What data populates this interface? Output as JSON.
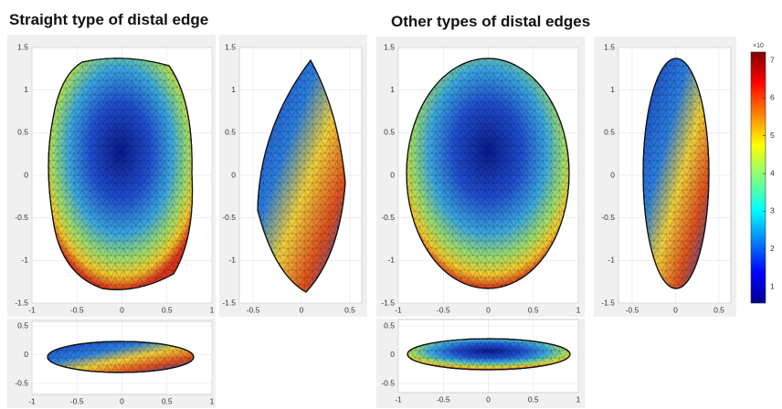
{
  "titles": {
    "left": "Straight type of distal edge",
    "right": "Other types of distal edges"
  },
  "panels": [
    {
      "xticks": [
        -1,
        -0.5,
        0,
        0.5,
        1
      ],
      "yticks": [
        1.5,
        1,
        0.5,
        0,
        -0.5,
        -1,
        -1.5
      ]
    },
    {
      "xticks": [
        -0.5,
        0,
        0.5
      ],
      "yticks": [
        1.5,
        1,
        0.5,
        0,
        -0.5,
        -1,
        -1.5
      ]
    },
    {
      "xticks": [
        -1,
        -0.5,
        0,
        0.5,
        1
      ],
      "yticks": [
        0.5,
        0,
        -0.5
      ]
    },
    {
      "xticks": [
        -1,
        -0.5,
        0,
        0.5,
        1
      ],
      "yticks": [
        1.5,
        1,
        0.5,
        0,
        -0.5,
        -1,
        -1.5
      ]
    },
    {
      "xticks": [
        -0.5,
        0,
        0.5
      ],
      "yticks": [
        1.5,
        1,
        0.5,
        0,
        -0.5,
        -1,
        -1.5
      ]
    },
    {
      "xticks": [
        -1,
        -0.5,
        0,
        0.5,
        1
      ],
      "yticks": [
        0.5,
        0,
        -0.5
      ]
    }
  ],
  "colorbar": {
    "exponent": "×10",
    "ticks": [
      1,
      2,
      3,
      4,
      5,
      6,
      7
    ]
  }
}
